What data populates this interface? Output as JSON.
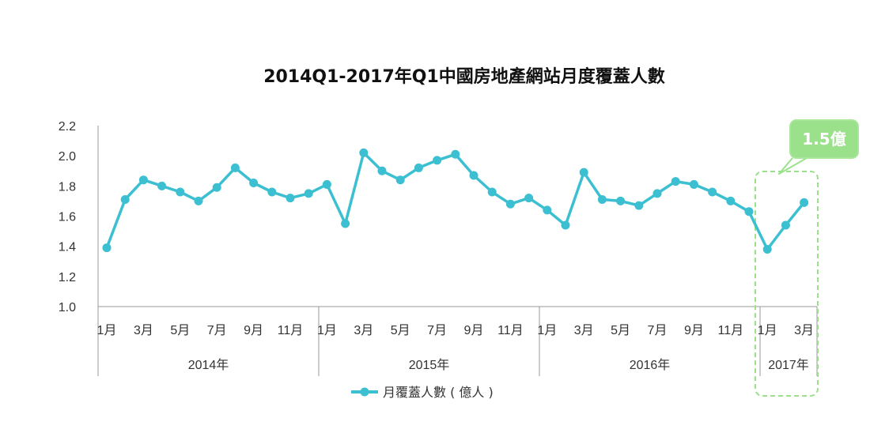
{
  "chart_data": {
    "type": "line",
    "title": "2014Q1-2017年Q1中國房地產網站月度覆蓋人數",
    "y_ticks": [
      "1.0",
      "1.2",
      "1.4",
      "1.6",
      "1.8",
      "2.0",
      "2.2"
    ],
    "ylim": [
      1.0,
      2.2
    ],
    "grid": false,
    "legend_position": "bottom",
    "years": [
      "2014年",
      "2015年",
      "2016年",
      "2017年"
    ],
    "month_labels": [
      "1月",
      "",
      "3月",
      "",
      "5月",
      "",
      "7月",
      "",
      "9月",
      "",
      "11月",
      "",
      "1月",
      "",
      "3月",
      "",
      "5月",
      "",
      "7月",
      "",
      "9月",
      "",
      "11月",
      "",
      "1月",
      "",
      "3月",
      "",
      "5月",
      "",
      "7月",
      "",
      "9月",
      "",
      "11月",
      "",
      "1月",
      "",
      "3月"
    ],
    "series": [
      {
        "name": "月覆蓋人數 ( 億人 )",
        "color": "#3bbfd1",
        "values": [
          1.39,
          1.71,
          1.84,
          1.8,
          1.76,
          1.7,
          1.79,
          1.92,
          1.82,
          1.76,
          1.72,
          1.75,
          1.81,
          1.55,
          2.02,
          1.9,
          1.84,
          1.92,
          1.97,
          2.01,
          1.87,
          1.76,
          1.68,
          1.72,
          1.64,
          1.54,
          1.89,
          1.71,
          1.7,
          1.67,
          1.75,
          1.83,
          1.81,
          1.76,
          1.7,
          1.63,
          1.38,
          1.54,
          1.69
        ]
      }
    ],
    "annotation": {
      "text": "1.5億",
      "color": "#9be08a"
    }
  }
}
